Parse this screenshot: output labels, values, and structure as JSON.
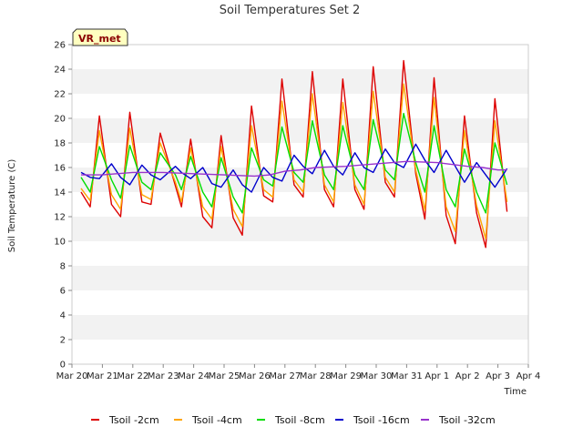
{
  "chart_data": {
    "type": "line",
    "title": "Soil Temperatures Set 2",
    "xlabel": "Time",
    "ylabel": "Soil Temperature (C)",
    "badge": "VR_met",
    "ylim": [
      0,
      26
    ],
    "yticks": [
      0,
      2,
      4,
      6,
      8,
      10,
      12,
      14,
      16,
      18,
      20,
      22,
      24,
      26
    ],
    "xlim": [
      0,
      15
    ],
    "xticks": [
      {
        "v": 0,
        "label": "Mar 20"
      },
      {
        "v": 1,
        "label": "Mar 21"
      },
      {
        "v": 2,
        "label": "Mar 22"
      },
      {
        "v": 3,
        "label": "Mar 23"
      },
      {
        "v": 4,
        "label": "Mar 24"
      },
      {
        "v": 5,
        "label": "Mar 25"
      },
      {
        "v": 6,
        "label": "Mar 26"
      },
      {
        "v": 7,
        "label": "Mar 27"
      },
      {
        "v": 8,
        "label": "Mar 28"
      },
      {
        "v": 9,
        "label": "Mar 29"
      },
      {
        "v": 10,
        "label": "Mar 30"
      },
      {
        "v": 11,
        "label": "Mar 31"
      },
      {
        "v": 12,
        "label": "Apr 1"
      },
      {
        "v": 13,
        "label": "Apr 2"
      },
      {
        "v": 14,
        "label": "Apr 3"
      },
      {
        "v": 15,
        "label": "Apr 4"
      }
    ],
    "grid": "horizontal bands",
    "legend_position": "bottom",
    "series": [
      {
        "name": "Tsoil -2cm",
        "color": "#dd0000",
        "x": [
          0.3,
          0.6,
          0.9,
          1.3,
          1.6,
          1.9,
          2.3,
          2.6,
          2.9,
          3.4,
          3.6,
          3.9,
          4.3,
          4.6,
          4.9,
          5.3,
          5.6,
          5.9,
          6.3,
          6.6,
          6.9,
          7.3,
          7.6,
          7.9,
          8.3,
          8.6,
          8.9,
          9.3,
          9.6,
          9.9,
          10.3,
          10.6,
          10.9,
          11.3,
          11.6,
          11.9,
          12.3,
          12.6,
          12.9,
          13.3,
          13.6,
          13.9,
          14.3
        ],
        "y": [
          14,
          12.8,
          20.2,
          13,
          12,
          20.5,
          13.2,
          13,
          18.8,
          14.5,
          12.8,
          18.3,
          12,
          11.1,
          18.6,
          11.9,
          10.5,
          21.0,
          13.7,
          13.2,
          23.2,
          14.6,
          13.6,
          23.8,
          14.2,
          12.8,
          23.2,
          14.2,
          12.6,
          24.2,
          14.8,
          13.6,
          24.7,
          15.5,
          11.8,
          23.3,
          12.1,
          9.8,
          20.2,
          12.3,
          9.5,
          21.6,
          12.4
        ]
      },
      {
        "name": "Tsoil -4cm",
        "color": "#ffa500",
        "x": [
          0.3,
          0.6,
          0.9,
          1.3,
          1.6,
          1.9,
          2.3,
          2.6,
          2.9,
          3.4,
          3.6,
          3.9,
          4.3,
          4.6,
          4.9,
          5.3,
          5.6,
          5.9,
          6.3,
          6.6,
          6.9,
          7.3,
          7.6,
          7.9,
          8.3,
          8.6,
          8.9,
          9.3,
          9.6,
          9.9,
          10.3,
          10.6,
          10.9,
          11.3,
          11.6,
          11.9,
          12.3,
          12.6,
          12.9,
          13.3,
          13.6,
          13.9,
          14.3
        ],
        "y": [
          14.3,
          13.3,
          19.0,
          13.8,
          12.6,
          19.2,
          13.8,
          13.4,
          18.0,
          14.8,
          13.2,
          17.6,
          12.8,
          11.8,
          17.7,
          12.6,
          11.2,
          19.4,
          14.2,
          13.6,
          21.4,
          15.0,
          14.0,
          22.0,
          14.6,
          13.2,
          21.3,
          14.6,
          13.0,
          22.2,
          15.2,
          14.0,
          22.8,
          15.8,
          12.5,
          21.7,
          12.8,
          10.8,
          19.0,
          12.9,
          10.2,
          19.8,
          13.2
        ]
      },
      {
        "name": "Tsoil -8cm",
        "color": "#00dd00",
        "x": [
          0.3,
          0.6,
          0.9,
          1.3,
          1.6,
          1.9,
          2.3,
          2.6,
          2.9,
          3.4,
          3.6,
          3.9,
          4.3,
          4.6,
          4.9,
          5.3,
          5.6,
          5.9,
          6.3,
          6.6,
          6.9,
          7.3,
          7.6,
          7.9,
          8.3,
          8.6,
          8.9,
          9.3,
          9.6,
          9.9,
          10.3,
          10.6,
          10.9,
          11.3,
          11.6,
          11.9,
          12.3,
          12.6,
          12.9,
          13.3,
          13.6,
          13.9,
          14.3
        ],
        "y": [
          15.2,
          14.0,
          17.7,
          15.0,
          13.5,
          17.8,
          14.8,
          14.2,
          17.2,
          15.4,
          14.2,
          16.9,
          14.0,
          12.8,
          16.8,
          13.6,
          12.3,
          17.6,
          15.0,
          14.5,
          19.3,
          15.6,
          14.8,
          19.8,
          15.4,
          14.2,
          19.4,
          15.4,
          14.2,
          19.9,
          15.8,
          15.0,
          20.4,
          16.4,
          14.0,
          19.4,
          14.2,
          12.8,
          17.5,
          14.0,
          12.3,
          18.0,
          14.6
        ]
      },
      {
        "name": "Tsoil -16cm",
        "color": "#0000cc",
        "x": [
          0.3,
          0.6,
          0.9,
          1.3,
          1.6,
          1.9,
          2.3,
          2.6,
          2.9,
          3.4,
          3.6,
          3.9,
          4.3,
          4.6,
          4.9,
          5.3,
          5.6,
          5.9,
          6.3,
          6.6,
          6.9,
          7.3,
          7.6,
          7.9,
          8.3,
          8.6,
          8.9,
          9.3,
          9.6,
          9.9,
          10.3,
          10.6,
          10.9,
          11.3,
          11.6,
          11.9,
          12.3,
          12.6,
          12.9,
          13.3,
          13.6,
          13.9,
          14.3
        ],
        "y": [
          15.6,
          15.2,
          15.1,
          16.3,
          15.2,
          14.6,
          16.2,
          15.4,
          15.0,
          16.1,
          15.6,
          15.1,
          16.0,
          14.7,
          14.4,
          15.8,
          14.6,
          14.0,
          16.0,
          15.2,
          14.9,
          17.0,
          16.1,
          15.5,
          17.4,
          16.1,
          15.4,
          17.2,
          16.0,
          15.6,
          17.5,
          16.4,
          16.0,
          17.9,
          16.6,
          15.6,
          17.4,
          16.1,
          14.8,
          16.4,
          15.4,
          14.4,
          15.9
        ]
      },
      {
        "name": "Tsoil -32cm",
        "color": "#9933cc",
        "x": [
          0.3,
          1,
          2,
          3,
          4,
          5,
          6,
          6.5,
          7,
          7.5,
          8,
          9,
          10,
          11,
          12,
          13,
          13.5,
          14,
          14.3
        ],
        "y": [
          15.4,
          15.4,
          15.6,
          15.6,
          15.5,
          15.4,
          15.3,
          15.4,
          15.7,
          15.8,
          16.0,
          16.1,
          16.3,
          16.5,
          16.4,
          16.1,
          16.0,
          15.8,
          15.8
        ]
      }
    ]
  }
}
